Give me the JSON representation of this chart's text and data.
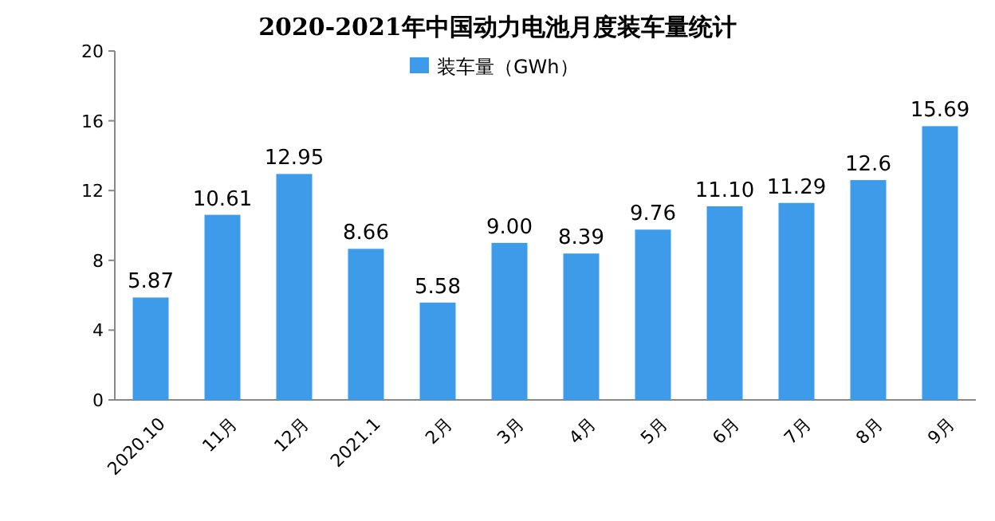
{
  "chart_data": {
    "type": "bar",
    "title": "2020-2021年中国动力电池月度装车量统计",
    "categories": [
      "2020.10",
      "11月",
      "12月",
      "2021.1",
      "2月",
      "3月",
      "4月",
      "5月",
      "6月",
      "7月",
      "8月",
      "9月"
    ],
    "series": [
      {
        "name": "装车量（GWh）",
        "color": "#3d9be9",
        "values": [
          5.87,
          10.61,
          12.95,
          8.66,
          5.58,
          9.0,
          8.39,
          9.76,
          11.1,
          11.29,
          12.6,
          15.69
        ],
        "value_labels": [
          "5.87",
          "10.61",
          "12.95",
          "8.66",
          "5.58",
          "9.00",
          "8.39",
          "9.76",
          "11.10",
          "11.29",
          "12.6",
          "15.69"
        ]
      }
    ],
    "ylim": [
      0,
      20
    ],
    "yticks": [
      0,
      4,
      8,
      12,
      16,
      20
    ],
    "legend": "top"
  }
}
